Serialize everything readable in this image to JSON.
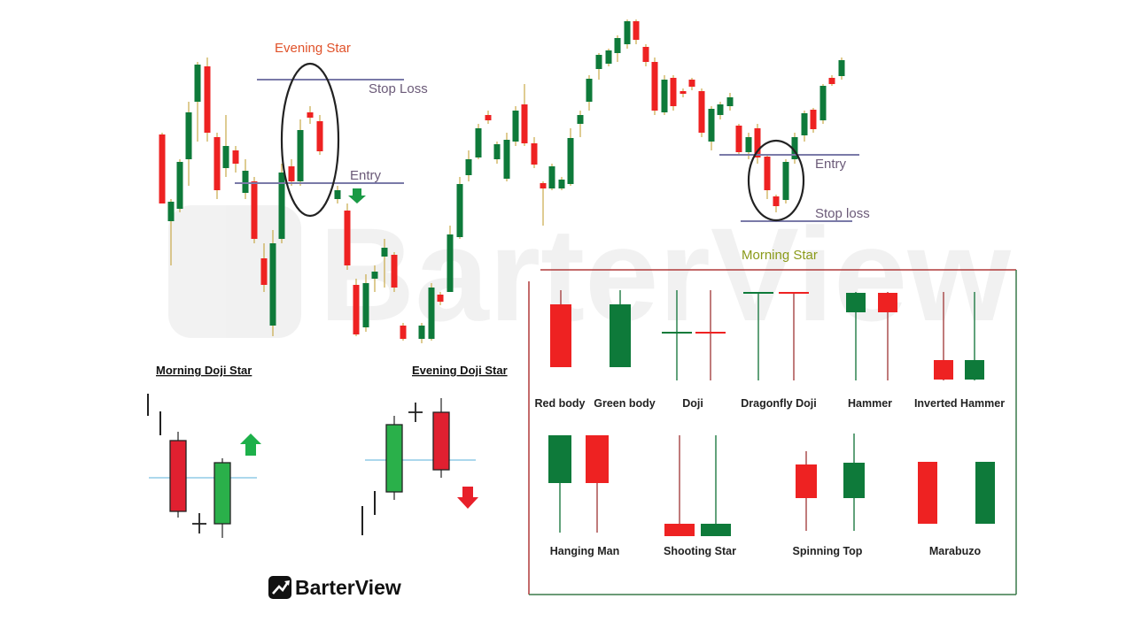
{
  "watermark": "BarterView",
  "annotations": {
    "evening_star": "Evening Star",
    "stop_loss_upper": "Stop Loss",
    "entry_upper": "Entry",
    "entry_lower": "Entry",
    "stop_loss_lower": "Stop loss",
    "morning_star": "Morning Star"
  },
  "doji_examples": {
    "morning_title": "Morning Doji Star",
    "evening_title": "Evening Doji Star"
  },
  "legend": {
    "row1": [
      "Red body",
      "Green body",
      "Doji",
      "Dragonfly Doji",
      "Hammer",
      "Inverted Hammer"
    ],
    "row2": [
      "Hanging Man",
      "Shooting Star",
      "Spinning Top",
      "Marabuzo"
    ]
  },
  "brand": {
    "name": "BarterView",
    "logo": "trend-arrow-logo-icon"
  },
  "colors": {
    "bull": "#0e7a3a",
    "bear": "#ee2222",
    "annotation_red": "#e0522a",
    "annotation_text": "#6b5a78",
    "morning_star_text": "#8a9a1a",
    "guide_line": "#7a7aa8",
    "legend_border_top": "#b03a3a",
    "legend_border": "#3a7a4a"
  }
}
